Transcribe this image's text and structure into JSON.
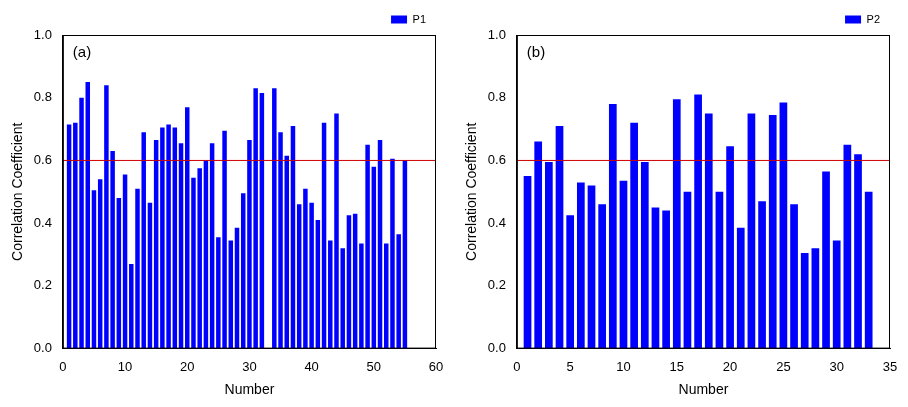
{
  "chart_data": [
    {
      "type": "bar",
      "panel_label": "(a)",
      "x_label": "Number",
      "y_label": "Correlation Coefficient",
      "x": [
        1,
        2,
        3,
        4,
        5,
        6,
        7,
        8,
        9,
        10,
        11,
        12,
        13,
        14,
        15,
        16,
        17,
        18,
        19,
        20,
        21,
        22,
        23,
        24,
        25,
        26,
        27,
        28,
        29,
        30,
        31,
        32,
        33,
        34,
        35,
        36,
        37,
        38,
        39,
        40,
        41,
        42,
        43,
        44,
        45,
        46,
        47,
        48,
        49,
        50,
        51,
        52,
        53,
        54,
        55
      ],
      "series": [
        {
          "name": "P1",
          "color": "#0000ff",
          "values": [
            0.715,
            0.72,
            0.8,
            0.85,
            0.505,
            0.54,
            0.84,
            0.63,
            0.48,
            0.555,
            0.27,
            0.51,
            0.69,
            0.465,
            0.665,
            0.705,
            0.715,
            0.705,
            0.655,
            0.77,
            0.545,
            0.575,
            0.6,
            0.655,
            0.355,
            0.695,
            0.345,
            0.385,
            0.495,
            0.665,
            0.83,
            0.815,
            null,
            0.83,
            0.69,
            0.615,
            0.71,
            0.46,
            0.51,
            0.465,
            0.41,
            0.72,
            0.345,
            0.75,
            0.32,
            0.425,
            0.43,
            0.335,
            0.65,
            0.58,
            0.665,
            0.335,
            0.605,
            0.365,
            0.6
          ]
        }
      ],
      "threshold": 0.6,
      "threshold_color": "#cc0000",
      "xlim": [
        0,
        60
      ],
      "xticks": [
        0,
        10,
        20,
        30,
        40,
        50,
        60
      ],
      "ylim": [
        0,
        1
      ],
      "yticks": [
        {
          "value": 0,
          "label": "0.0"
        },
        0.2,
        0.4,
        0.6,
        0.8,
        {
          "value": 1,
          "label": "1.0"
        }
      ],
      "grid": false,
      "legend": "upper right"
    },
    {
      "type": "bar",
      "panel_label": "(b)",
      "x_label": "Number",
      "y_label": "Correlation Coefficient",
      "x": [
        1,
        2,
        3,
        4,
        5,
        6,
        7,
        8,
        9,
        10,
        11,
        12,
        13,
        14,
        15,
        16,
        17,
        18,
        19,
        20,
        21,
        22,
        23,
        24,
        25,
        26,
        27,
        28,
        29,
        30,
        31,
        32,
        33
      ],
      "series": [
        {
          "name": "P2",
          "color": "#0000ff",
          "values": [
            0.55,
            0.66,
            0.595,
            0.71,
            0.425,
            0.53,
            0.52,
            0.46,
            0.78,
            0.535,
            0.72,
            0.595,
            0.45,
            0.44,
            0.795,
            0.5,
            0.81,
            0.75,
            0.5,
            0.645,
            0.385,
            0.75,
            0.47,
            0.745,
            0.785,
            0.46,
            0.305,
            0.32,
            0.565,
            0.345,
            0.65,
            0.62,
            0.5
          ]
        }
      ],
      "threshold": 0.6,
      "threshold_color": "#cc0000",
      "xlim": [
        0,
        35
      ],
      "xticks": [
        0,
        5,
        10,
        15,
        20,
        25,
        30,
        35
      ],
      "ylim": [
        0,
        1
      ],
      "yticks": [
        {
          "value": 0,
          "label": "0.0"
        },
        0.2,
        0.4,
        0.6,
        0.8,
        {
          "value": 1,
          "label": "1.0"
        }
      ],
      "grid": false,
      "legend": "upper right"
    }
  ]
}
